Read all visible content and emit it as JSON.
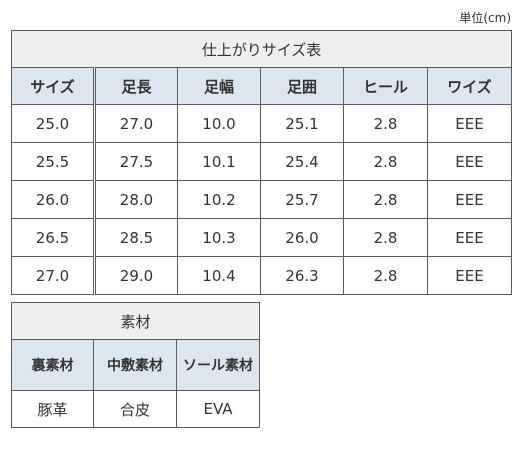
{
  "unit_label": "単位(cm)",
  "size_table": {
    "title": "仕上がりサイズ表",
    "headers": [
      "サイズ",
      "足長",
      "足幅",
      "足囲",
      "ヒール",
      "ワイズ"
    ],
    "rows": [
      [
        "25.0",
        "27.0",
        "10.0",
        "25.1",
        "2.8",
        "EEE"
      ],
      [
        "25.5",
        "27.5",
        "10.1",
        "25.4",
        "2.8",
        "EEE"
      ],
      [
        "26.0",
        "28.0",
        "10.2",
        "25.7",
        "2.8",
        "EEE"
      ],
      [
        "26.5",
        "28.5",
        "10.3",
        "26.0",
        "2.8",
        "EEE"
      ],
      [
        "27.0",
        "29.0",
        "10.4",
        "26.3",
        "2.8",
        "EEE"
      ]
    ]
  },
  "material_table": {
    "title": "素材",
    "headers": [
      "裏素材",
      "中敷素材",
      "ソール素材"
    ],
    "values": [
      "豚革",
      "合皮",
      "EVA"
    ]
  }
}
